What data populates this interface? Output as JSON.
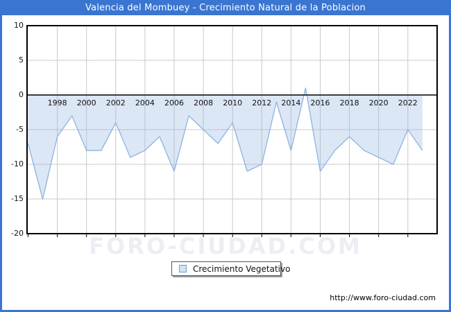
{
  "window": {
    "title": "Valencia del Mombuey - Crecimiento Natural de la Poblacion"
  },
  "colors": {
    "frame_blue": "#3a75d1",
    "title_text": "#ffffff",
    "line": "#92b5e2",
    "area_fill": "#dce9f8",
    "grid": "#c9c9c9",
    "axis": "#000000",
    "watermark": "#ededf4",
    "legend_marker_fill": "#cfe2f7",
    "legend_marker_border": "#6f9bd1"
  },
  "chart_data": {
    "type": "area",
    "title": "Valencia del Mombuey - Crecimiento Natural de la Poblacion",
    "x": [
      1996,
      1997,
      1998,
      1999,
      2000,
      2001,
      2002,
      2003,
      2004,
      2005,
      2006,
      2007,
      2008,
      2009,
      2010,
      2011,
      2012,
      2013,
      2014,
      2015,
      2016,
      2017,
      2018,
      2019,
      2020,
      2021,
      2022,
      2023
    ],
    "series": [
      {
        "name": "Crecimiento Vegetativo",
        "values": [
          -7,
          -15,
          -6,
          -3,
          -8,
          -8,
          -4,
          -9,
          -8,
          -6,
          -11,
          -3,
          -5,
          -7,
          -4,
          -11,
          -10,
          -1,
          -8,
          1,
          -11,
          -8,
          -6,
          -8,
          -9,
          -10,
          -5,
          -8
        ]
      }
    ],
    "ylim": [
      -20,
      10
    ],
    "yticks": [
      10,
      5,
      0,
      -5,
      -10,
      -15,
      -20
    ],
    "xtick_labels": [
      "1998",
      "2000",
      "2002",
      "2004",
      "2006",
      "2008",
      "2010",
      "2012",
      "2014",
      "2016",
      "2018",
      "2020",
      "2022"
    ],
    "grid": true,
    "legend_position": "bottom-center",
    "xlabel": "",
    "ylabel": ""
  },
  "legend": {
    "label": "Crecimiento Vegetativo"
  },
  "watermark": {
    "text": "FORO-CIUDAD.COM"
  },
  "footer": {
    "url": "http://www.foro-ciudad.com"
  }
}
